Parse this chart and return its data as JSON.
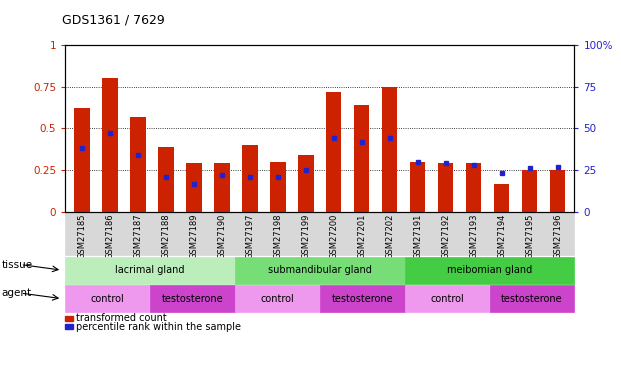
{
  "title": "GDS1361 / 7629",
  "samples": [
    "GSM27185",
    "GSM27186",
    "GSM27187",
    "GSM27188",
    "GSM27189",
    "GSM27190",
    "GSM27197",
    "GSM27198",
    "GSM27199",
    "GSM27200",
    "GSM27201",
    "GSM27202",
    "GSM27191",
    "GSM27192",
    "GSM27193",
    "GSM27194",
    "GSM27195",
    "GSM27196"
  ],
  "red_bars": [
    0.62,
    0.8,
    0.57,
    0.39,
    0.29,
    0.29,
    0.4,
    0.3,
    0.34,
    0.72,
    0.64,
    0.75,
    0.3,
    0.29,
    0.29,
    0.17,
    0.25,
    0.25
  ],
  "blue_dots": [
    0.38,
    0.47,
    0.34,
    0.21,
    0.17,
    0.22,
    0.21,
    0.21,
    0.25,
    0.44,
    0.42,
    0.44,
    0.3,
    0.29,
    0.28,
    0.23,
    0.26,
    0.27
  ],
  "tissue_groups": [
    {
      "label": "lacrimal gland",
      "start": 0,
      "end": 6,
      "color": "#bbeebb"
    },
    {
      "label": "submandibular gland",
      "start": 6,
      "end": 12,
      "color": "#77dd77"
    },
    {
      "label": "meibomian gland",
      "start": 12,
      "end": 18,
      "color": "#44cc44"
    }
  ],
  "agent_groups": [
    {
      "label": "control",
      "start": 0,
      "end": 3,
      "color": "#ee99ee"
    },
    {
      "label": "testosterone",
      "start": 3,
      "end": 6,
      "color": "#cc44cc"
    },
    {
      "label": "control",
      "start": 6,
      "end": 9,
      "color": "#ee99ee"
    },
    {
      "label": "testosterone",
      "start": 9,
      "end": 12,
      "color": "#cc44cc"
    },
    {
      "label": "control",
      "start": 12,
      "end": 15,
      "color": "#ee99ee"
    },
    {
      "label": "testosterone",
      "start": 15,
      "end": 18,
      "color": "#cc44cc"
    }
  ],
  "bar_color": "#cc2200",
  "dot_color": "#2222cc",
  "ylim_left": [
    0,
    1
  ],
  "ylim_right": [
    0,
    100
  ],
  "yticks_left": [
    0,
    0.25,
    0.5,
    0.75,
    1.0
  ],
  "ytick_labels_left": [
    "0",
    "0.25",
    "0.5",
    "0.75",
    "1"
  ],
  "yticks_right": [
    0,
    25,
    50,
    75,
    100
  ],
  "ytick_labels_right": [
    "0",
    "25",
    "50",
    "75",
    "100%"
  ],
  "legend_red": "transformed count",
  "legend_blue": "percentile rank within the sample",
  "tissue_label": "tissue",
  "agent_label": "agent",
  "bar_width": 0.55
}
